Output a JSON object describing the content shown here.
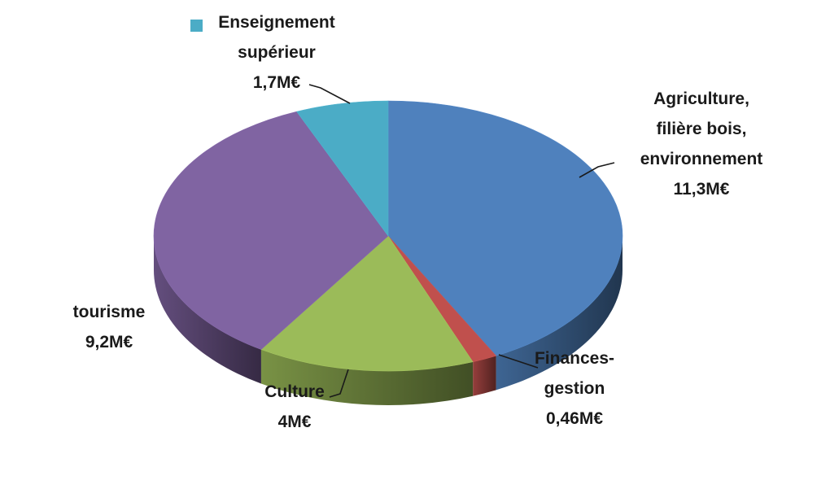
{
  "chart_data": {
    "type": "pie",
    "title": "",
    "three_d": true,
    "legend": "inline-labels",
    "slices": [
      {
        "label_lines": [
          "Agriculture,",
          "filière bois,",
          "environnement"
        ],
        "value_label": "11,3M€",
        "value": 11.3,
        "unit": "M€",
        "color": "#4f81bd"
      },
      {
        "label_lines": [
          "Finances-",
          "gestion"
        ],
        "value_label": "0,46M€",
        "value": 0.46,
        "unit": "M€",
        "color": "#c0504d"
      },
      {
        "label_lines": [
          "Culture"
        ],
        "value_label": "4M€",
        "value": 4.0,
        "unit": "M€",
        "color": "#9bbb59"
      },
      {
        "label_lines": [
          "tourisme"
        ],
        "value_label": "9,2M€",
        "value": 9.2,
        "unit": "M€",
        "color": "#8064a2"
      },
      {
        "label_lines": [
          "Enseignement",
          "supérieur"
        ],
        "value_label": "1,7M€",
        "value": 1.7,
        "unit": "M€",
        "color": "#4bacc6"
      }
    ]
  }
}
